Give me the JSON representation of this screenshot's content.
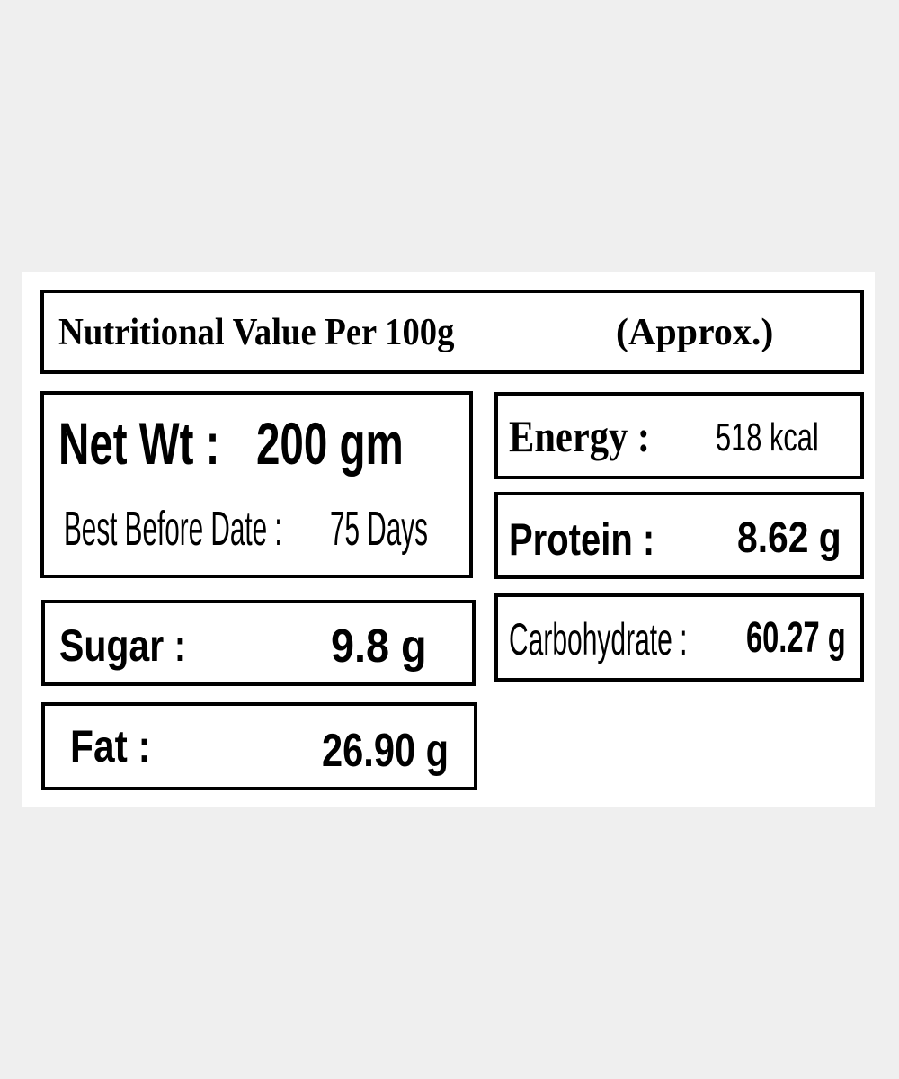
{
  "label": {
    "title": "Nutritional Value Per 100g",
    "title_note": "(Approx.)",
    "net_weight": {
      "label": "Net Wt :",
      "value": "200 gm"
    },
    "best_before": {
      "label": "Best Before Date :",
      "value": "75 Days"
    },
    "items": [
      {
        "label": "Energy :",
        "value": "518 kcal"
      },
      {
        "label": "Protein :",
        "value": "8.62 g"
      },
      {
        "label": "Carbohydrate :",
        "value": "60.27 g"
      },
      {
        "label": "Sugar :",
        "value": "9.8 g"
      },
      {
        "label": "Fat :",
        "value": "26.90 g"
      }
    ]
  }
}
